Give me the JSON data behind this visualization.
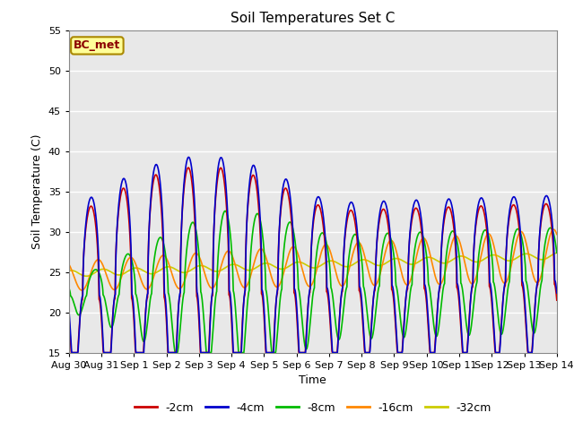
{
  "title": "Soil Temperatures Set C",
  "xlabel": "Time",
  "ylabel": "Soil Temperature (C)",
  "ylim": [
    15,
    55
  ],
  "yticks": [
    15,
    20,
    25,
    30,
    35,
    40,
    45,
    50,
    55
  ],
  "bg_color": "#e8e8e8",
  "annotation_text": "BC_met",
  "annotation_bg": "#ffff99",
  "annotation_border": "#aa8800",
  "annotation_text_color": "#8b0000",
  "series_colors": {
    "-2cm": "#cc0000",
    "-4cm": "#0000cc",
    "-8cm": "#00bb00",
    "-16cm": "#ff8800",
    "-32cm": "#cccc00"
  },
  "x_tick_labels": [
    "Aug 30",
    "Aug 31",
    "Sep 1",
    "Sep 2",
    "Sep 3",
    "Sep 4",
    "Sep 5",
    "Sep 6",
    "Sep 7",
    "Sep 8",
    "Sep 9",
    "Sep 10",
    "Sep 11",
    "Sep 12",
    "Sep 13",
    "Sep 14"
  ],
  "num_points": 1440
}
